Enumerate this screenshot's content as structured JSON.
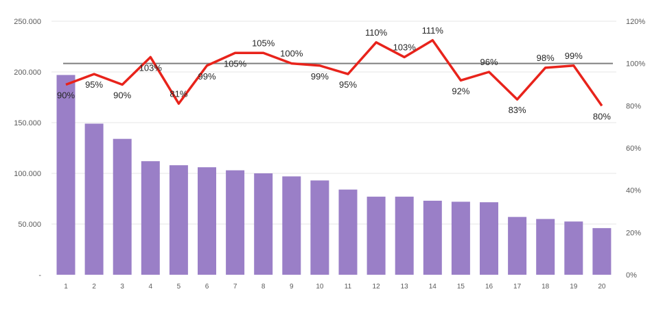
{
  "chart_data": {
    "type": "bar",
    "categories": [
      "1",
      "2",
      "3",
      "4",
      "5",
      "6",
      "7",
      "8",
      "9",
      "10",
      "11",
      "12",
      "13",
      "14",
      "15",
      "16",
      "17",
      "18",
      "19",
      "20"
    ],
    "series": [
      {
        "type": "bar",
        "axis": "left",
        "values": [
          197000,
          149000,
          134000,
          112000,
          108000,
          106000,
          103000,
          100000,
          97000,
          93000,
          84000,
          77000,
          77000,
          73000,
          72000,
          71500,
          57000,
          55000,
          52500,
          46000
        ]
      },
      {
        "type": "line",
        "axis": "right",
        "values": [
          90,
          95,
          90,
          103,
          81,
          99,
          105,
          105,
          100,
          99,
          95,
          110,
          103,
          111,
          92,
          96,
          83,
          98,
          99,
          80
        ],
        "labels": [
          "90%",
          "95%",
          "90%",
          "103%",
          "81%",
          "99%",
          "105%",
          "105%",
          "100%",
          "99%",
          "95%",
          "110%",
          "103%",
          "111%",
          "92%",
          "96%",
          "83%",
          "98%",
          "99%",
          "80%"
        ]
      }
    ],
    "left_axis": {
      "ylim": [
        0,
        250000
      ],
      "ticks": [
        0,
        50000,
        100000,
        150000,
        200000,
        250000
      ],
      "tick_labels": [
        "-",
        "50.000",
        "100.000",
        "150.000",
        "200.000",
        "250.000"
      ]
    },
    "right_axis": {
      "ylim": [
        0,
        120
      ],
      "ticks": [
        0,
        20,
        40,
        60,
        80,
        100,
        120
      ],
      "tick_labels": [
        "0%",
        "20%",
        "40%",
        "60%",
        "80%",
        "100%",
        "120%"
      ]
    },
    "reference_line": 100,
    "grid": true,
    "title": "",
    "xlabel": "",
    "ylabel": "",
    "colors": {
      "bar": "#9a7fc7",
      "line": "#e8231b",
      "reference": "#7f7f7f",
      "grid": "#e6e6e6"
    }
  }
}
